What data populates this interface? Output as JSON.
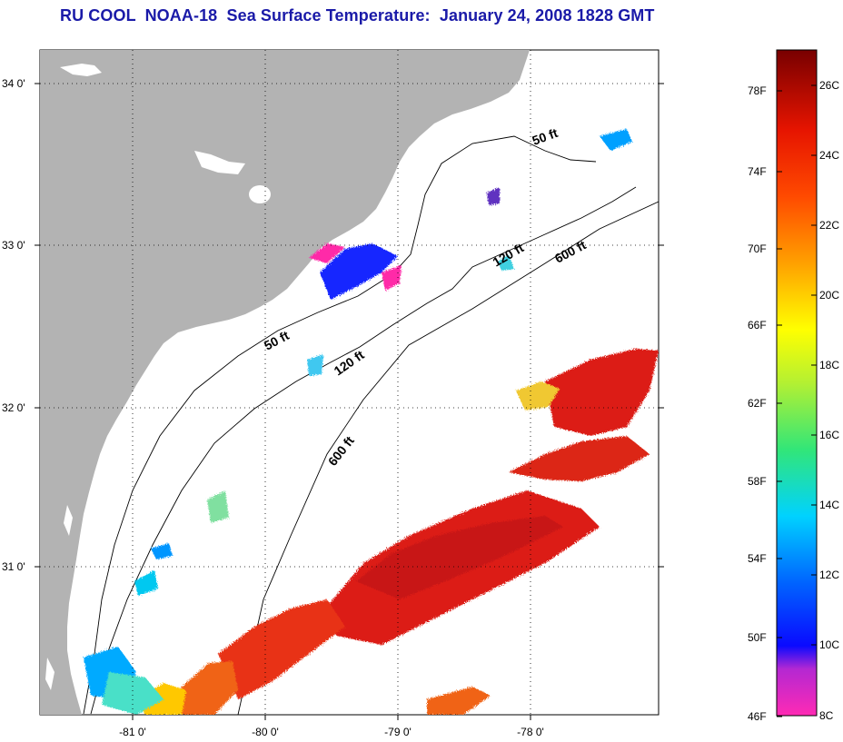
{
  "title": "RU COOL  NOAA-18  Sea Surface Temperature:  January 24, 2008 1828 GMT",
  "colors": {
    "land": "#b3b3b3",
    "title": "#1a1aa8",
    "warm_red": "#dc1e14",
    "orange": "#f06414",
    "yellow": "#ffff00",
    "cyan": "#00e0ff",
    "blue": "#1428ff",
    "magenta": "#ff2aa8"
  },
  "lat_labels": [
    {
      "text": "34 0'",
      "lat": 34.0
    },
    {
      "text": "33 0'",
      "lat": 33.0
    },
    {
      "text": "32 0'",
      "lat": 32.0
    },
    {
      "text": "31 0'",
      "lat": 31.0
    }
  ],
  "lon_labels": [
    {
      "text": "-81 0'",
      "lon": -81.0
    },
    {
      "text": "-80 0'",
      "lon": -80.0
    },
    {
      "text": "-79 0'",
      "lon": -79.0
    },
    {
      "text": "-78 0'",
      "lon": -78.0
    }
  ],
  "depth_labels": {
    "ft50": "50 ft",
    "ft120": "120 ft",
    "ft600": "600 ft"
  },
  "colorbar": {
    "fahrenheit": [
      "78F",
      "74F",
      "70F",
      "66F",
      "62F",
      "58F",
      "54F",
      "50F",
      "46F"
    ],
    "celsius": [
      "26C",
      "24C",
      "22C",
      "20C",
      "18C",
      "16C",
      "14C",
      "12C",
      "10C",
      "8C"
    ],
    "range_c": [
      8,
      27
    ]
  }
}
